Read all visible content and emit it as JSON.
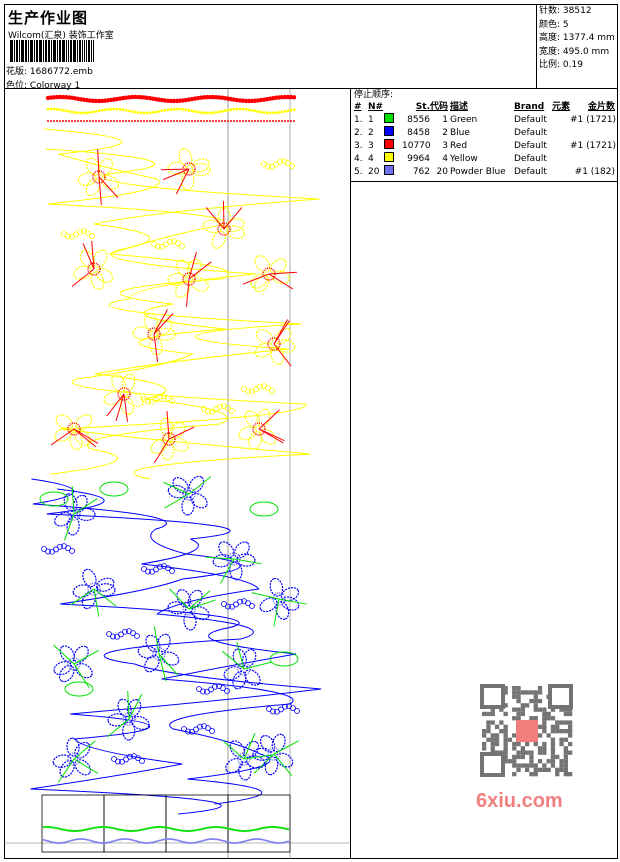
{
  "header": {
    "title": "生产作业图",
    "company": "Wilcom(汇泉) 装饰工作室",
    "file_label": "花版:",
    "file_value": "1686772.emb",
    "colorway_label": "色位:",
    "colorway_value": "Colorway 1"
  },
  "info": [
    {
      "label": "针数:",
      "value": "38512"
    },
    {
      "label": "颜色:",
      "value": "5"
    },
    {
      "label": "高度:",
      "value": "1377.4 mm"
    },
    {
      "label": "宽度:",
      "value": "495.0 mm"
    },
    {
      "label": "比例:",
      "value": "0.19"
    }
  ],
  "stop_sequence": {
    "title": "停止顺序:",
    "headers": [
      "#",
      "N#",
      "St.",
      "代码",
      "描述",
      "Brand",
      "元素",
      "金片数"
    ],
    "rows": [
      {
        "idx": "1.",
        "n": "1",
        "color": "#00e000",
        "st": "8556",
        "code": "1",
        "desc": "Green",
        "brand": "Default",
        "elem": "",
        "seq": "#1 (1721)"
      },
      {
        "idx": "2.",
        "n": "2",
        "color": "#0000ff",
        "st": "8458",
        "code": "2",
        "desc": "Blue",
        "brand": "Default",
        "elem": "",
        "seq": ""
      },
      {
        "idx": "3.",
        "n": "3",
        "color": "#ff0000",
        "st": "10770",
        "code": "3",
        "desc": "Red",
        "brand": "Default",
        "elem": "",
        "seq": "#1 (1721)"
      },
      {
        "idx": "4.",
        "n": "4",
        "color": "#ffff00",
        "st": "9964",
        "code": "4",
        "desc": "Yellow",
        "brand": "Default",
        "elem": "",
        "seq": ""
      },
      {
        "idx": "5.",
        "n": "20",
        "color": "#7070f0",
        "st": "762",
        "code": "20",
        "desc": "Powder Blue",
        "brand": "Default",
        "elem": "",
        "seq": "#1 (182)"
      }
    ]
  },
  "watermark": {
    "text": "6xiu.com"
  }
}
